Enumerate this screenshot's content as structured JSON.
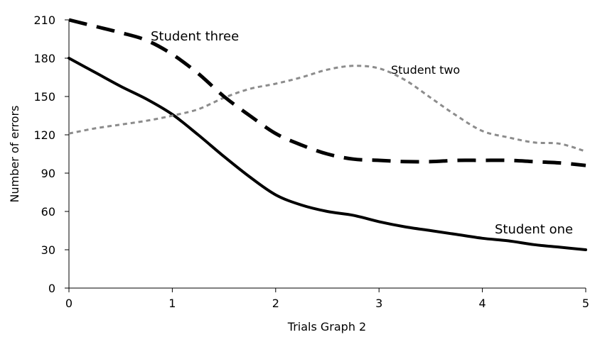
{
  "chart_data": {
    "type": "line",
    "title": "",
    "xlabel": "Trials Graph 2",
    "ylabel": "Number of errors",
    "xlim": [
      0,
      5
    ],
    "ylim": [
      0,
      210
    ],
    "x_ticks": [
      "0",
      "1",
      "2",
      "3",
      "4",
      "5"
    ],
    "y_ticks": [
      "0",
      "30",
      "60",
      "90",
      "120",
      "150",
      "180",
      "210"
    ],
    "grid": false,
    "legend": "none",
    "series": [
      {
        "name": "Student one",
        "style": "solid",
        "color": "#000000",
        "x": [
          0,
          0.25,
          0.5,
          0.75,
          1,
          1.25,
          1.5,
          1.75,
          2,
          2.25,
          2.5,
          2.75,
          3,
          3.25,
          3.5,
          3.75,
          4,
          4.25,
          4.5,
          4.75,
          5
        ],
        "y": [
          180,
          169,
          158,
          148,
          136,
          120,
          103,
          87,
          73,
          65,
          60,
          57,
          52,
          48,
          45,
          42,
          39,
          37,
          34,
          32,
          30
        ]
      },
      {
        "name": "Student two",
        "style": "dotted",
        "color": "#8c8c8c",
        "x": [
          0,
          0.25,
          0.5,
          0.75,
          1,
          1.25,
          1.5,
          1.75,
          2,
          2.25,
          2.5,
          2.75,
          3,
          3.25,
          3.5,
          3.75,
          4,
          4.25,
          4.5,
          4.75,
          5
        ],
        "y": [
          121,
          125,
          128,
          131,
          135,
          140,
          149,
          156,
          160,
          165,
          171,
          174,
          172,
          163,
          149,
          135,
          123,
          118,
          114,
          113,
          107
        ]
      },
      {
        "name": "Student three",
        "style": "dashed",
        "color": "#000000",
        "x": [
          0,
          0.25,
          0.5,
          0.75,
          1,
          1.25,
          1.5,
          1.75,
          2,
          2.25,
          2.5,
          2.75,
          3,
          3.25,
          3.5,
          3.75,
          4,
          4.25,
          4.5,
          4.75,
          5
        ],
        "y": [
          210,
          205,
          200,
          194,
          183,
          168,
          150,
          135,
          121,
          112,
          105,
          101,
          100,
          99,
          99,
          100,
          100,
          100,
          99,
          98,
          96
        ]
      }
    ]
  }
}
